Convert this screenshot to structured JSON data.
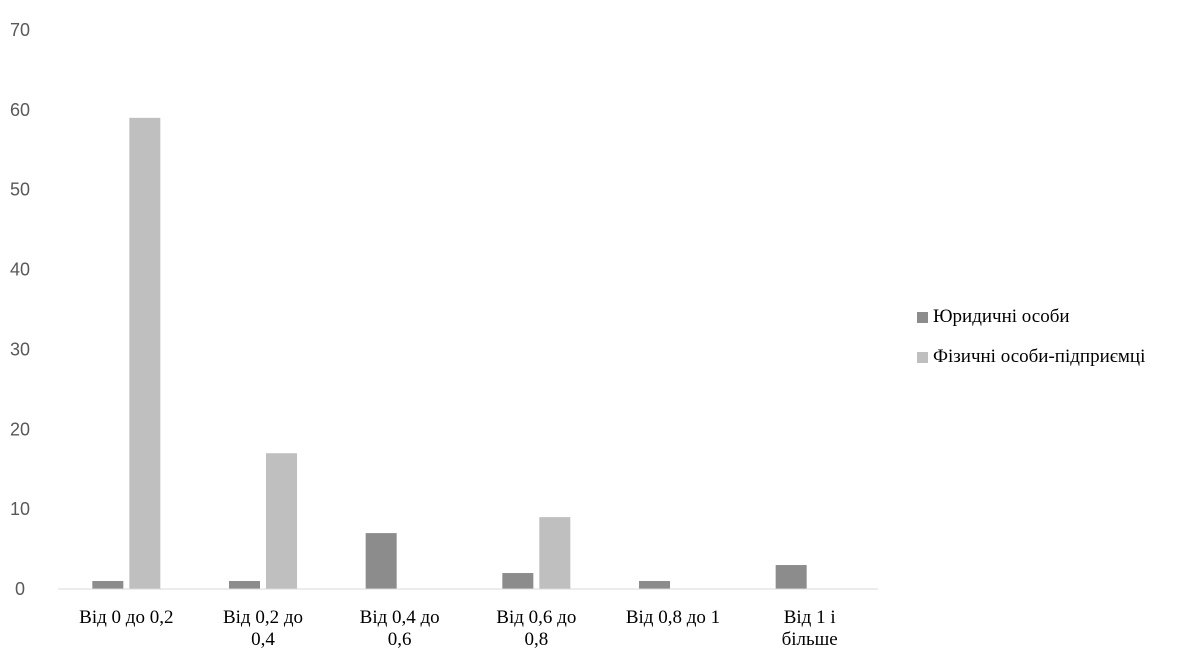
{
  "chart_data": {
    "type": "bar",
    "categories": [
      [
        "Від 0 до 0,2"
      ],
      [
        "Від 0,2 до",
        "0,4"
      ],
      [
        "Від 0,4 до",
        "0,6"
      ],
      [
        "Від 0,6 до",
        "0,8"
      ],
      [
        "Від 0,8 до 1"
      ],
      [
        "Від 1 і",
        "більше"
      ]
    ],
    "series": [
      {
        "name": "Юридичні особи",
        "values": [
          1,
          1,
          7,
          2,
          1,
          3
        ],
        "color": "#8c8c8c"
      },
      {
        "name": "Фізичні особи-підприємці",
        "values": [
          59,
          17,
          0,
          9,
          0,
          0
        ],
        "color": "#bfbfbf"
      }
    ],
    "title": "",
    "xlabel": "",
    "ylabel": "",
    "ylim": [
      0,
      70
    ],
    "yticks": [
      "0",
      "10",
      "20",
      "30",
      "40",
      "50",
      "60",
      "70"
    ],
    "grid": false,
    "legend_position": "right"
  }
}
